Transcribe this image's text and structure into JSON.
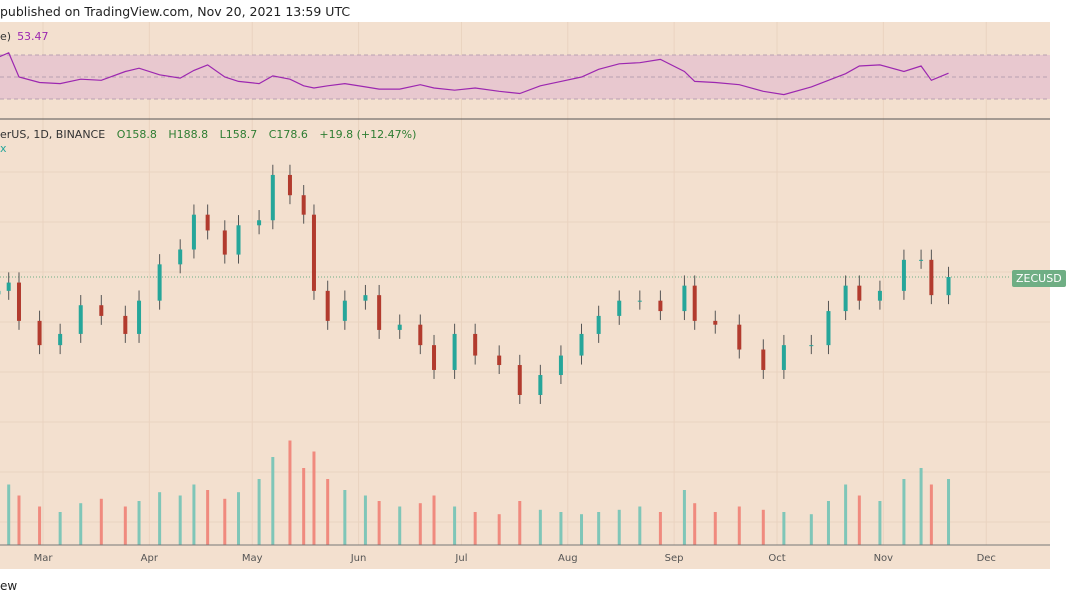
{
  "header": {
    "text": "published on TradingView.com, Nov 20, 2021 13:59 UTC"
  },
  "rsi": {
    "label": "e)",
    "value": "53.47",
    "upper": 70,
    "mid": 50,
    "lower": 30,
    "color": "#9c27b0",
    "values": [
      68,
      72,
      50,
      45,
      44,
      48,
      47,
      55,
      58,
      52,
      49,
      56,
      61,
      50,
      46,
      44,
      51,
      48,
      42,
      40,
      42,
      44,
      41,
      39,
      39,
      43,
      40,
      38,
      40,
      37,
      35,
      42,
      46,
      50,
      57,
      62,
      63,
      66,
      55,
      46,
      45,
      43,
      37,
      34,
      41,
      47,
      53,
      60,
      61,
      55,
      60,
      47,
      53.47
    ]
  },
  "legend": {
    "symbol": "erUS, 1D, BINANCE",
    "open": "O158.8",
    "high": "H188.8",
    "low": "L158.7",
    "close": "C178.6",
    "change": "+19.8 (+12.47%)",
    "icon": "x"
  },
  "price_tag": "ZECUSD",
  "footer": "ew",
  "colors": {
    "up": "#26a69a",
    "down": "#b23b2e",
    "vol_up": "#7fc6b8",
    "vol_down": "#f08a7e",
    "bg": "#f3e0cf"
  },
  "chart_data": {
    "type": "candlestick",
    "scale": "log",
    "x_ticks": [
      "Mar",
      "Apr",
      "May",
      "Jun",
      "Jul",
      "Aug",
      "Sep",
      "Oct",
      "Nov",
      "Dec"
    ],
    "dates": [
      "Feb 16",
      "Feb 19",
      "Feb 22",
      "Feb 28",
      "Mar 6",
      "Mar 12",
      "Mar 18",
      "Mar 25",
      "Mar 29",
      "Apr 4",
      "Apr 10",
      "Apr 14",
      "Apr 18",
      "Apr 23",
      "Apr 27",
      "May 3",
      "May 7",
      "May 12",
      "May 16",
      "May 19",
      "May 23",
      "May 28",
      "Jun 3",
      "Jun 7",
      "Jun 13",
      "Jun 19",
      "Jun 23",
      "Jun 29",
      "Jul 5",
      "Jul 12",
      "Jul 18",
      "Jul 24",
      "Jul 30",
      "Aug 5",
      "Aug 10",
      "Aug 16",
      "Aug 22",
      "Aug 28",
      "Sep 4",
      "Sep 7",
      "Sep 13",
      "Sep 20",
      "Sep 27",
      "Oct 3",
      "Oct 11",
      "Oct 16",
      "Oct 21",
      "Oct 25",
      "Oct 31",
      "Nov 7",
      "Nov 12",
      "Nov 15",
      "Nov 20"
    ],
    "close": [
      165,
      173,
      139,
      121,
      129,
      152,
      143,
      129,
      156,
      192,
      209,
      255,
      233,
      203,
      240,
      247,
      320,
      285,
      255,
      165,
      139,
      156,
      161,
      132,
      136,
      121,
      105,
      129,
      114,
      108,
      91,
      102,
      114,
      129,
      143,
      156,
      156,
      147,
      170,
      139,
      136,
      118,
      105,
      121,
      121,
      147,
      170,
      156,
      165,
      197,
      197,
      161,
      178.6
    ],
    "volume": [
      40,
      55,
      45,
      35,
      30,
      38,
      42,
      35,
      40,
      48,
      45,
      55,
      50,
      42,
      48,
      60,
      80,
      95,
      70,
      85,
      60,
      50,
      45,
      40,
      35,
      38,
      45,
      35,
      30,
      28,
      40,
      32,
      30,
      28,
      30,
      32,
      35,
      30,
      50,
      38,
      30,
      35,
      32,
      30,
      28,
      40,
      55,
      45,
      40,
      60,
      70,
      55,
      60
    ]
  }
}
